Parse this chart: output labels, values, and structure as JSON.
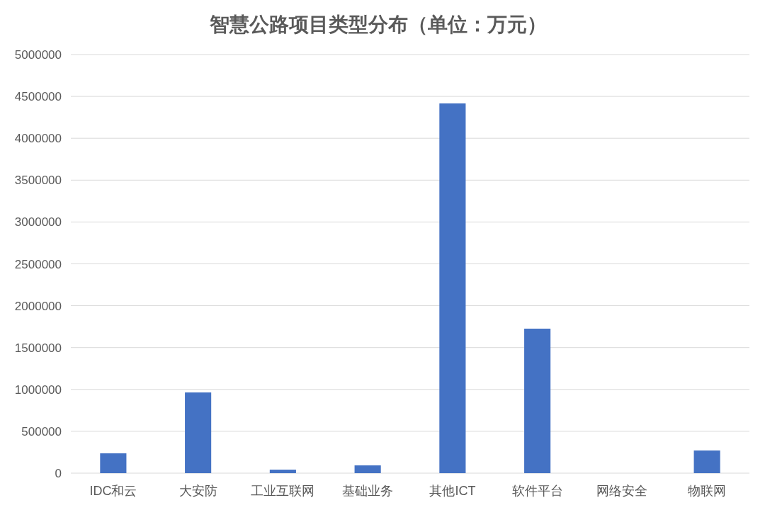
{
  "chart_data": {
    "type": "bar",
    "title": "智慧公路项目类型分布（单位：万元）",
    "categories": [
      "IDC和云",
      "大安防",
      "工业互联网",
      "基础业务",
      "其他ICT",
      "软件平台",
      "网络安全",
      "物联网"
    ],
    "values": [
      237000,
      964000,
      42000,
      93000,
      4416000,
      1726000,
      0,
      271000
    ],
    "color": "#4472c4",
    "ylim": [
      0,
      5000000
    ],
    "yticks": [
      0,
      500000,
      1000000,
      1500000,
      2000000,
      2500000,
      3000000,
      3500000,
      4000000,
      4500000,
      5000000
    ],
    "grid": "y"
  }
}
